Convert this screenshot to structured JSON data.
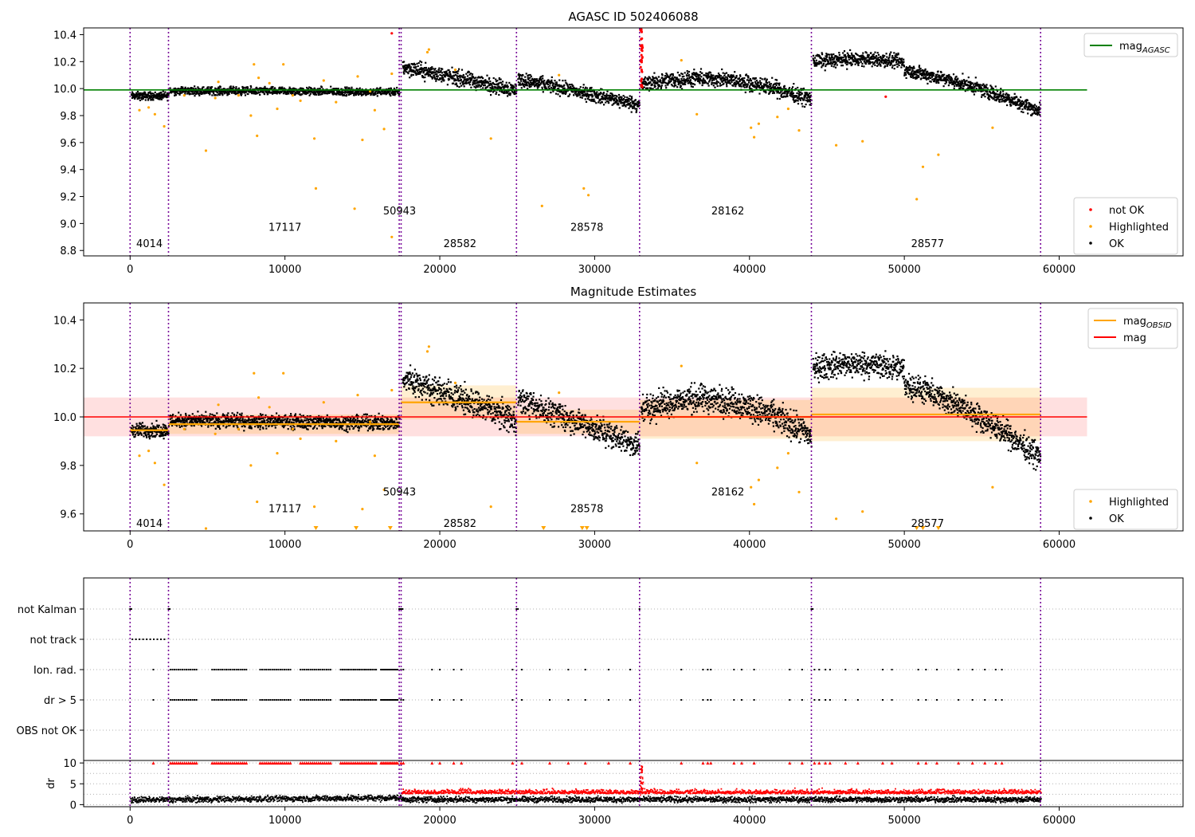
{
  "figure": {
    "vlines_x": [
      0,
      2480,
      17380,
      17500,
      24950,
      32900,
      44000,
      58800
    ],
    "colors": {
      "ok": "#000000",
      "highlighted": "#ffa500",
      "not_ok": "#ff0000",
      "agasc": "#008000",
      "mag": "#ff0000",
      "obsid": "#ffa500",
      "vline": "#7a0a9a"
    }
  },
  "chart_data": [
    {
      "id": "panel1",
      "type": "scatter",
      "title": "AGASC ID 502406088",
      "xlim": [
        -3000,
        68000
      ],
      "ylim": [
        8.76,
        10.45
      ],
      "xticks": [
        0,
        10000,
        20000,
        30000,
        40000,
        50000,
        60000
      ],
      "yticks": [
        8.8,
        9.0,
        9.2,
        9.4,
        9.6,
        9.8,
        10.0,
        10.2,
        10.4
      ],
      "agasc_mag": 9.99,
      "agasc_x_range": [
        -3000,
        61800
      ],
      "obs_labels": [
        {
          "text": "4014",
          "x": 1250,
          "y": 8.85
        },
        {
          "text": "17117",
          "x": 10000,
          "y": 8.97
        },
        {
          "text": "50943",
          "x": 17400,
          "y": 9.09
        },
        {
          "text": "28582",
          "x": 21300,
          "y": 8.85
        },
        {
          "text": "28578",
          "x": 29500,
          "y": 8.97
        },
        {
          "text": "28162",
          "x": 38600,
          "y": 9.09
        },
        {
          "text": "28577",
          "x": 51500,
          "y": 8.85
        }
      ],
      "legend_top": [
        {
          "label": "mag",
          "sub": "AGASC",
          "color": "#008000",
          "kind": "line"
        }
      ],
      "legend_bottom": [
        {
          "label": "not OK",
          "color": "#ff0000",
          "kind": "dot"
        },
        {
          "label": "Highlighted",
          "color": "#ffa500",
          "kind": "dot"
        },
        {
          "label": "OK",
          "color": "#000000",
          "kind": "dot"
        }
      ]
    },
    {
      "id": "panel2",
      "type": "scatter",
      "title": "Magnitude Estimates",
      "xlim": [
        -3000,
        68000
      ],
      "ylim": [
        9.53,
        10.47
      ],
      "xticks": [
        0,
        10000,
        20000,
        30000,
        40000,
        50000,
        60000
      ],
      "yticks": [
        9.6,
        9.8,
        10.0,
        10.2,
        10.4
      ],
      "mag": 10.0,
      "mag_band": [
        9.92,
        10.08
      ],
      "mag_x_range": [
        -3000,
        61800
      ],
      "obsid_means": [
        {
          "x0": 0,
          "x1": 2480,
          "mean": 9.945,
          "lo": 9.93,
          "hi": 9.96
        },
        {
          "x0": 2480,
          "x1": 17380,
          "mean": 9.97,
          "lo": 9.93,
          "hi": 10.01
        },
        {
          "x0": 17500,
          "x1": 24950,
          "mean": 10.06,
          "lo": 9.99,
          "hi": 10.13
        },
        {
          "x0": 24950,
          "x1": 32900,
          "mean": 9.98,
          "lo": 9.93,
          "hi": 10.03
        },
        {
          "x0": 32900,
          "x1": 44000,
          "mean": 10.0,
          "lo": 9.91,
          "hi": 10.07
        },
        {
          "x0": 44000,
          "x1": 58800,
          "mean": 10.01,
          "lo": 9.9,
          "hi": 10.12
        }
      ],
      "obs_labels": [
        {
          "text": "4014",
          "x": 1250,
          "y": 9.56
        },
        {
          "text": "17117",
          "x": 10000,
          "y": 9.62
        },
        {
          "text": "50943",
          "x": 17400,
          "y": 9.69
        },
        {
          "text": "28582",
          "x": 21300,
          "y": 9.56
        },
        {
          "text": "28578",
          "x": 29500,
          "y": 9.62
        },
        {
          "text": "28162",
          "x": 38600,
          "y": 9.69
        },
        {
          "text": "28577",
          "x": 51500,
          "y": 9.56
        }
      ],
      "legend_top": [
        {
          "label": "mag",
          "sub": "OBSID",
          "color": "#ffa500",
          "kind": "line"
        },
        {
          "label": "mag",
          "sub": "",
          "color": "#ff0000",
          "kind": "line"
        }
      ],
      "legend_bottom": [
        {
          "label": "Highlighted",
          "color": "#ffa500",
          "kind": "dot"
        },
        {
          "label": "OK",
          "color": "#000000",
          "kind": "dot"
        }
      ]
    },
    {
      "id": "panel3",
      "type": "scatter",
      "xlim": [
        -3000,
        68000
      ],
      "flag_labels": [
        "not Kalman",
        "not track",
        "Ion. rad.",
        "dr > 5",
        "OBS not OK"
      ]
    },
    {
      "id": "panel4",
      "type": "scatter",
      "ylabel": "dr",
      "xlim": [
        -3000,
        68000
      ],
      "ylim": [
        -0.5,
        10.6
      ],
      "yticks": [
        0,
        5,
        10
      ],
      "xticks": [
        0,
        10000,
        20000,
        30000,
        40000,
        50000,
        60000
      ]
    }
  ]
}
